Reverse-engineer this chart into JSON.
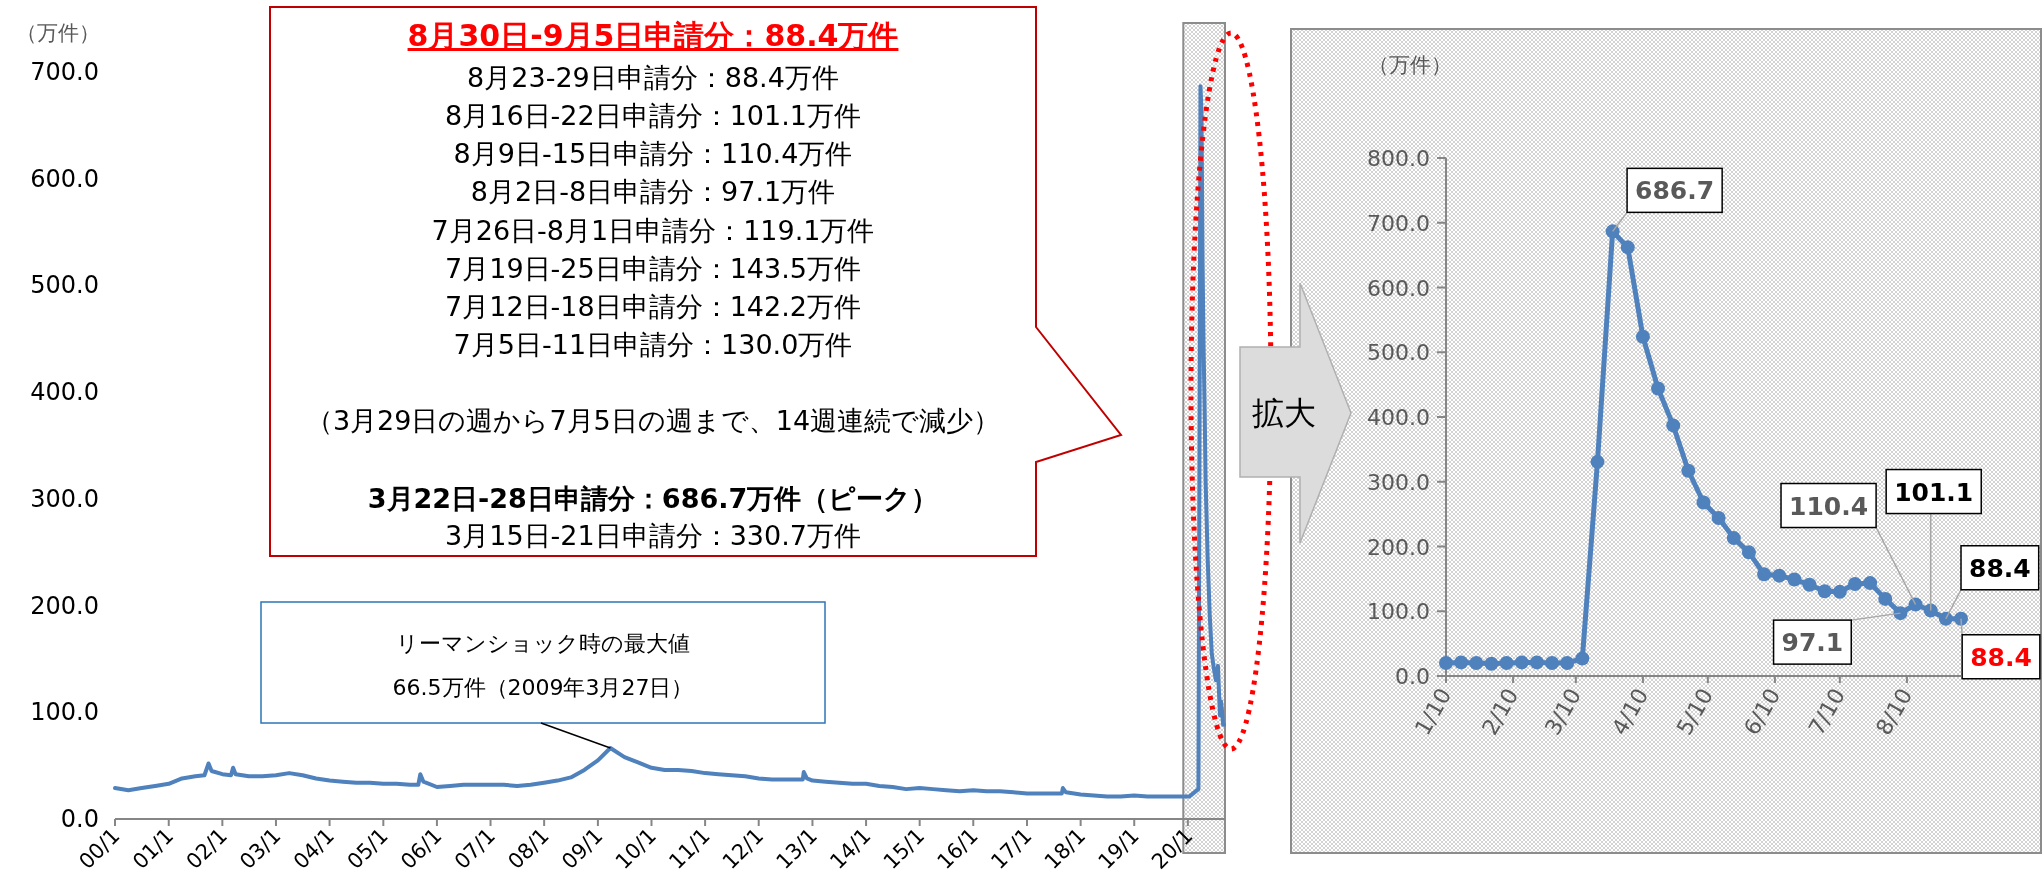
{
  "chart_data": [
    {
      "type": "line",
      "ylabel": "（万件）",
      "x": [
        "2000-01",
        "2000-04",
        "2000-07",
        "2000-10",
        "2001-01",
        "2001-04",
        "2001-07",
        "2001-09-01",
        "2001-09-29",
        "2001-10-20",
        "2002-01",
        "2002-03-01",
        "2002-03-15",
        "2002-04",
        "2002-07",
        "2002-10",
        "2003-01",
        "2003-04",
        "2003-07",
        "2003-10",
        "2004-01",
        "2004-04",
        "2004-07",
        "2004-10",
        "2005-01",
        "2005-04",
        "2005-07",
        "2005-08-27",
        "2005-09-10",
        "2005-10-01",
        "2006-01",
        "2006-04",
        "2006-07",
        "2006-10",
        "2007-01",
        "2007-04",
        "2007-07",
        "2007-10",
        "2008-01",
        "2008-04",
        "2008-07",
        "2008-10",
        "2009-01",
        "2009-03-27",
        "2009-07",
        "2009-10",
        "2010-01",
        "2010-04",
        "2010-07",
        "2010-10",
        "2011-01",
        "2011-04",
        "2011-07",
        "2011-10",
        "2012-01",
        "2012-04",
        "2012-07",
        "2012-10-27",
        "2012-11-03",
        "2012-11-24",
        "2013-01",
        "2013-04",
        "2013-07",
        "2013-10",
        "2014-01",
        "2014-04",
        "2014-07",
        "2014-10",
        "2015-01",
        "2015-04",
        "2015-07",
        "2015-10",
        "2016-01",
        "2016-04",
        "2016-07",
        "2016-10",
        "2017-01",
        "2017-04",
        "2017-07",
        "2017-08-26",
        "2017-09-02",
        "2017-09-23",
        "2018-01",
        "2018-04",
        "2018-07",
        "2018-10",
        "2019-01",
        "2019-04",
        "2019-07",
        "2019-10",
        "2020-01-10",
        "2020-03-13",
        "2020-03-20",
        "2020-03-27",
        "2020-04-03",
        "2020-04-10",
        "2020-04-17",
        "2020-04-24",
        "2020-05-01",
        "2020-05-15",
        "2020-05-29",
        "2020-06-12",
        "2020-06-26",
        "2020-07-10",
        "2020-07-24",
        "2020-07-31",
        "2020-08-07",
        "2020-08-14",
        "2020-08-21",
        "2020-08-28",
        "2020-09-04"
      ],
      "series": [
        {
          "color": "#4f81bd",
          "values": [
            29,
            27,
            29,
            31,
            33,
            38,
            40,
            41,
            52,
            45,
            42,
            41,
            48,
            42,
            40,
            40,
            41,
            43,
            41,
            38,
            36,
            35,
            34,
            34,
            33,
            33,
            32,
            32,
            42,
            35,
            30,
            31,
            32,
            32,
            32,
            32,
            31,
            32,
            34,
            36,
            39,
            46,
            55,
            66.5,
            58,
            53,
            48,
            46,
            46,
            45,
            43,
            42,
            41,
            40,
            38,
            37,
            37,
            37,
            44,
            38,
            36,
            35,
            34,
            33,
            33,
            31,
            30,
            28,
            29,
            28,
            27,
            26,
            27,
            26,
            26,
            25,
            24,
            24,
            24,
            24,
            29,
            25,
            23,
            22,
            21,
            21,
            22,
            21,
            21,
            21,
            21,
            28,
            330.7,
            686.7,
            662,
            524,
            444,
            387,
            317,
            244,
            191,
            155,
            141,
            130.0,
            143.5,
            119.1,
            97.1,
            110.4,
            101.1,
            88.4,
            88.4
          ]
        }
      ],
      "xlim": [
        "2000-01-01",
        "2020-09-10"
      ],
      "xticks": [
        {
          "value": "2000-01",
          "label": "00/1"
        },
        {
          "value": "2001-01",
          "label": "01/1"
        },
        {
          "value": "2002-01",
          "label": "02/1"
        },
        {
          "value": "2003-01",
          "label": "03/1"
        },
        {
          "value": "2004-01",
          "label": "04/1"
        },
        {
          "value": "2005-01",
          "label": "05/1"
        },
        {
          "value": "2006-01",
          "label": "06/1"
        },
        {
          "value": "2007-01",
          "label": "07/1"
        },
        {
          "value": "2008-01",
          "label": "08/1"
        },
        {
          "value": "2009-01",
          "label": "09/1"
        },
        {
          "value": "2010-01",
          "label": "10/1"
        },
        {
          "value": "2011-01",
          "label": "11/1"
        },
        {
          "value": "2012-01",
          "label": "12/1"
        },
        {
          "value": "2013-01",
          "label": "13/1"
        },
        {
          "value": "2014-01",
          "label": "14/1"
        },
        {
          "value": "2015-01",
          "label": "15/1"
        },
        {
          "value": "2016-01",
          "label": "16/1"
        },
        {
          "value": "2017-01",
          "label": "17/1"
        },
        {
          "value": "2018-01",
          "label": "18/1"
        },
        {
          "value": "2019-01",
          "label": "19/1"
        },
        {
          "value": "2020-01",
          "label": "20/1"
        }
      ],
      "ylim": [
        0,
        700
      ],
      "yticks": [
        {
          "value": 0,
          "label": "0.0"
        },
        {
          "value": 100,
          "label": "100.0"
        },
        {
          "value": 200,
          "label": "200.0"
        },
        {
          "value": 300,
          "label": "300.0"
        },
        {
          "value": 400,
          "label": "400.0"
        },
        {
          "value": 500,
          "label": "500.0"
        },
        {
          "value": 600,
          "label": "600.0"
        },
        {
          "value": 700,
          "label": "700.0"
        }
      ],
      "marker": "none",
      "bands": [
        {
          "axis": "x",
          "from": "2019-12-01",
          "to": "2020-09-10",
          "color": "#8c8c8c"
        }
      ],
      "annotations": [
        {
          "text": "リーマンショック時の最大値\n66.5万件（2009年3月27日）",
          "x": "2009-03-27",
          "y": 66.5
        },
        "8月30日-9月5日申請分：88.4万件",
        "8月23-29日申請分：88.4万件",
        "8月16日-22日申請分：101.1万件",
        "8月9日-15日申請分：110.4万件",
        "8月2日-8日申請分：97.1万件",
        "7月26日-8月1日申請分：119.1万件",
        "7月19日-25日申請分：143.5万件",
        "7月12日-18日申請分：142.2万件",
        "7月5日-11日申請分：130.0万件",
        "（3月29日の週から7月5日の週まで、14週連続で減少）",
        "3月22日-28日申請分：686.7万件（ピーク）",
        "3月15日-21日申請分：330.7万件"
      ]
    },
    {
      "type": "line",
      "ylabel": "（万件）",
      "x": [
        "--01-10",
        "--01-17",
        "--01-24",
        "--01-31",
        "--02-07",
        "--02-14",
        "--02-21",
        "--02-28",
        "--03-06",
        "--03-13",
        "--03-20",
        "--03-27",
        "--04-03",
        "--04-10",
        "--04-17",
        "--04-24",
        "--05-01",
        "--05-08",
        "--05-15",
        "--05-22",
        "--05-29",
        "--06-05",
        "--06-12",
        "--06-19",
        "--06-26",
        "--07-03",
        "--07-10",
        "--07-17",
        "--07-24",
        "--07-31",
        "--08-07",
        "--08-14",
        "--08-21",
        "--08-28",
        "--09-04"
      ],
      "series": [
        {
          "color": "#4f81bd",
          "values": [
            20,
            21,
            20,
            19,
            20,
            21,
            21,
            20,
            20,
            27,
            330.7,
            686.7,
            662,
            524,
            444,
            387,
            317,
            268,
            244,
            213,
            191,
            157,
            155,
            149,
            141,
            131,
            130.0,
            142.2,
            143.5,
            119.1,
            97.1,
            110.4,
            101.1,
            88.4,
            88.4
          ],
          "value_labels": [
            null,
            null,
            null,
            null,
            null,
            null,
            null,
            null,
            null,
            null,
            null,
            "686.7",
            null,
            null,
            null,
            null,
            null,
            null,
            null,
            null,
            null,
            null,
            null,
            null,
            null,
            null,
            null,
            null,
            null,
            null,
            "97.1",
            "110.4",
            "101.1",
            "88.4",
            "88.4"
          ]
        }
      ],
      "xlim": [
        "--01-10",
        "--09-04"
      ],
      "xticks": [
        {
          "value": "--01-10",
          "label": "1/10"
        },
        {
          "value": "--02-10",
          "label": "2/10"
        },
        {
          "value": "--03-10",
          "label": "3/10"
        },
        {
          "value": "--04-10",
          "label": "4/10"
        },
        {
          "value": "--05-10",
          "label": "5/10"
        },
        {
          "value": "--06-10",
          "label": "6/10"
        },
        {
          "value": "--07-10",
          "label": "7/10"
        },
        {
          "value": "--08-10",
          "label": "8/10"
        }
      ],
      "ylim": [
        0,
        800
      ],
      "yticks": [
        {
          "value": 0,
          "label": "0.0"
        },
        {
          "value": 100,
          "label": "100.0"
        },
        {
          "value": 200,
          "label": "200.0"
        },
        {
          "value": 300,
          "label": "300.0"
        },
        {
          "value": 400,
          "label": "400.0"
        },
        {
          "value": 500,
          "label": "500.0"
        },
        {
          "value": 600,
          "label": "600.0"
        },
        {
          "value": 700,
          "label": "700.0"
        },
        {
          "value": 800,
          "label": "800.0"
        }
      ],
      "marker": "circle",
      "annotations": [
        "拡大"
      ]
    }
  ]
}
